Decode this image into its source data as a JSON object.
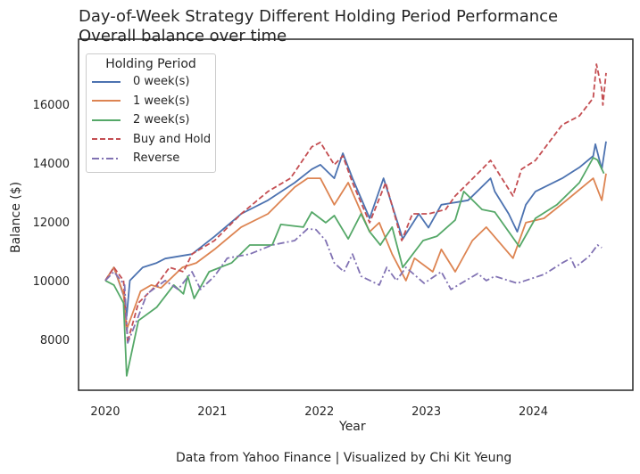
{
  "chart_data": {
    "type": "line",
    "title": "Day-of-Week Strategy Different Holding Period Performance",
    "subtitle": "Overall balance over time",
    "xlabel": "Year",
    "ylabel": "Balance ($)",
    "caption": "Data from Yahoo Finance | Visualized by Chi Kit Yeung",
    "xlim": [
      2019.75,
      2024.93
    ],
    "ylim": [
      6270,
      18210
    ],
    "xticks": [
      2020,
      2021,
      2022,
      2023,
      2024
    ],
    "yticks": [
      8000,
      10000,
      12000,
      14000,
      16000
    ],
    "grid": false,
    "legend": {
      "title": "Holding Period",
      "placement": "top-left"
    },
    "series": [
      {
        "name": "0 week(s)",
        "color": "#4c72b0",
        "style": "solid",
        "points": [
          [
            2020,
            10000
          ],
          [
            2020.08,
            10450
          ],
          [
            2020.18,
            9400
          ],
          [
            2020.2,
            8790
          ],
          [
            2020.23,
            10000
          ],
          [
            2020.35,
            10450
          ],
          [
            2020.48,
            10600
          ],
          [
            2020.56,
            10750
          ],
          [
            2020.81,
            10900
          ],
          [
            2021.02,
            11500
          ],
          [
            2021.27,
            12270
          ],
          [
            2021.52,
            12730
          ],
          [
            2021.77,
            13330
          ],
          [
            2021.93,
            13790
          ],
          [
            2022.01,
            13940
          ],
          [
            2022.14,
            13480
          ],
          [
            2022.22,
            14330
          ],
          [
            2022.31,
            13480
          ],
          [
            2022.47,
            12120
          ],
          [
            2022.6,
            13480
          ],
          [
            2022.78,
            11420
          ],
          [
            2022.93,
            12270
          ],
          [
            2023.02,
            11800
          ],
          [
            2023.14,
            12580
          ],
          [
            2023.39,
            12730
          ],
          [
            2023.6,
            13480
          ],
          [
            2023.64,
            13030
          ],
          [
            2023.77,
            12270
          ],
          [
            2023.85,
            11660
          ],
          [
            2023.93,
            12580
          ],
          [
            2024.02,
            13030
          ],
          [
            2024.27,
            13480
          ],
          [
            2024.43,
            13850
          ],
          [
            2024.56,
            14240
          ],
          [
            2024.58,
            14640
          ],
          [
            2024.64,
            13790
          ],
          [
            2024.68,
            14730
          ]
        ]
      },
      {
        "name": "1 week(s)",
        "color": "#dd8452",
        "style": "solid",
        "points": [
          [
            2020,
            10000
          ],
          [
            2020.08,
            10450
          ],
          [
            2020.17,
            9550
          ],
          [
            2020.2,
            8330
          ],
          [
            2020.33,
            9640
          ],
          [
            2020.43,
            9850
          ],
          [
            2020.52,
            9750
          ],
          [
            2020.72,
            10450
          ],
          [
            2020.85,
            10600
          ],
          [
            2021.02,
            11060
          ],
          [
            2021.27,
            11820
          ],
          [
            2021.52,
            12270
          ],
          [
            2021.77,
            13180
          ],
          [
            2021.89,
            13480
          ],
          [
            2022.01,
            13480
          ],
          [
            2022.14,
            12580
          ],
          [
            2022.27,
            13330
          ],
          [
            2022.47,
            11660
          ],
          [
            2022.56,
            11970
          ],
          [
            2022.68,
            10900
          ],
          [
            2022.81,
            10000
          ],
          [
            2022.89,
            10760
          ],
          [
            2023.06,
            10300
          ],
          [
            2023.14,
            11060
          ],
          [
            2023.27,
            10300
          ],
          [
            2023.43,
            11360
          ],
          [
            2023.56,
            11820
          ],
          [
            2023.81,
            10760
          ],
          [
            2023.93,
            11970
          ],
          [
            2024.1,
            12120
          ],
          [
            2024.31,
            12730
          ],
          [
            2024.56,
            13480
          ],
          [
            2024.64,
            12730
          ],
          [
            2024.68,
            13640
          ]
        ]
      },
      {
        "name": "2 week(s)",
        "color": "#55a868",
        "style": "solid",
        "points": [
          [
            2020,
            10000
          ],
          [
            2020.08,
            9850
          ],
          [
            2020.17,
            9240
          ],
          [
            2020.2,
            6760
          ],
          [
            2020.31,
            8640
          ],
          [
            2020.48,
            9090
          ],
          [
            2020.64,
            9850
          ],
          [
            2020.73,
            9550
          ],
          [
            2020.77,
            10150
          ],
          [
            2020.83,
            9390
          ],
          [
            2020.97,
            10300
          ],
          [
            2021.18,
            10600
          ],
          [
            2021.35,
            11210
          ],
          [
            2021.56,
            11210
          ],
          [
            2021.64,
            11910
          ],
          [
            2021.85,
            11820
          ],
          [
            2021.93,
            12330
          ],
          [
            2022.06,
            11970
          ],
          [
            2022.14,
            12210
          ],
          [
            2022.27,
            11420
          ],
          [
            2022.39,
            12270
          ],
          [
            2022.47,
            11660
          ],
          [
            2022.57,
            11210
          ],
          [
            2022.68,
            11820
          ],
          [
            2022.78,
            10450
          ],
          [
            2022.97,
            11360
          ],
          [
            2023.1,
            11510
          ],
          [
            2023.27,
            12060
          ],
          [
            2023.35,
            13030
          ],
          [
            2023.52,
            12420
          ],
          [
            2023.64,
            12330
          ],
          [
            2023.87,
            11150
          ],
          [
            2024.02,
            12120
          ],
          [
            2024.22,
            12580
          ],
          [
            2024.43,
            13330
          ],
          [
            2024.56,
            14180
          ],
          [
            2024.6,
            14100
          ],
          [
            2024.66,
            13640
          ]
        ]
      },
      {
        "name": "Buy and Hold",
        "color": "#c44e52",
        "style": "dashed",
        "points": [
          [
            2020,
            10000
          ],
          [
            2020.08,
            10450
          ],
          [
            2020.17,
            10000
          ],
          [
            2020.21,
            7880
          ],
          [
            2020.23,
            8200
          ],
          [
            2020.31,
            9240
          ],
          [
            2020.48,
            9850
          ],
          [
            2020.6,
            10450
          ],
          [
            2020.73,
            10300
          ],
          [
            2020.81,
            10900
          ],
          [
            2021.02,
            11360
          ],
          [
            2021.27,
            12270
          ],
          [
            2021.52,
            13030
          ],
          [
            2021.73,
            13480
          ],
          [
            2021.93,
            14550
          ],
          [
            2022.01,
            14700
          ],
          [
            2022.14,
            13940
          ],
          [
            2022.22,
            14240
          ],
          [
            2022.31,
            13330
          ],
          [
            2022.47,
            11970
          ],
          [
            2022.62,
            13330
          ],
          [
            2022.77,
            11360
          ],
          [
            2022.87,
            12270
          ],
          [
            2023.02,
            12270
          ],
          [
            2023.18,
            12420
          ],
          [
            2023.27,
            12880
          ],
          [
            2023.52,
            13790
          ],
          [
            2023.6,
            14090
          ],
          [
            2023.81,
            12880
          ],
          [
            2023.89,
            13790
          ],
          [
            2024.02,
            14090
          ],
          [
            2024.27,
            15300
          ],
          [
            2024.43,
            15600
          ],
          [
            2024.56,
            16210
          ],
          [
            2024.59,
            17360
          ],
          [
            2024.64,
            16500
          ],
          [
            2024.65,
            15970
          ],
          [
            2024.68,
            17060
          ]
        ]
      },
      {
        "name": "Reverse",
        "color": "#8172b3",
        "style": "dashdot",
        "points": [
          [
            2020,
            10000
          ],
          [
            2020.08,
            10300
          ],
          [
            2020.18,
            9850
          ],
          [
            2020.21,
            7880
          ],
          [
            2020.31,
            8790
          ],
          [
            2020.39,
            9550
          ],
          [
            2020.56,
            10000
          ],
          [
            2020.68,
            9700
          ],
          [
            2020.81,
            10300
          ],
          [
            2020.89,
            9700
          ],
          [
            2021.02,
            10150
          ],
          [
            2021.14,
            10760
          ],
          [
            2021.35,
            10900
          ],
          [
            2021.56,
            11210
          ],
          [
            2021.77,
            11360
          ],
          [
            2021.89,
            11760
          ],
          [
            2021.97,
            11730
          ],
          [
            2022.06,
            11360
          ],
          [
            2022.14,
            10600
          ],
          [
            2022.23,
            10300
          ],
          [
            2022.31,
            10900
          ],
          [
            2022.39,
            10150
          ],
          [
            2022.56,
            9850
          ],
          [
            2022.63,
            10450
          ],
          [
            2022.72,
            10000
          ],
          [
            2022.81,
            10450
          ],
          [
            2022.98,
            9910
          ],
          [
            2023.14,
            10300
          ],
          [
            2023.23,
            9700
          ],
          [
            2023.48,
            10240
          ],
          [
            2023.56,
            10000
          ],
          [
            2023.64,
            10150
          ],
          [
            2023.85,
            9910
          ],
          [
            2024.1,
            10210
          ],
          [
            2024.27,
            10600
          ],
          [
            2024.35,
            10760
          ],
          [
            2024.39,
            10450
          ],
          [
            2024.52,
            10820
          ],
          [
            2024.6,
            11210
          ],
          [
            2024.64,
            11120
          ]
        ]
      }
    ]
  }
}
